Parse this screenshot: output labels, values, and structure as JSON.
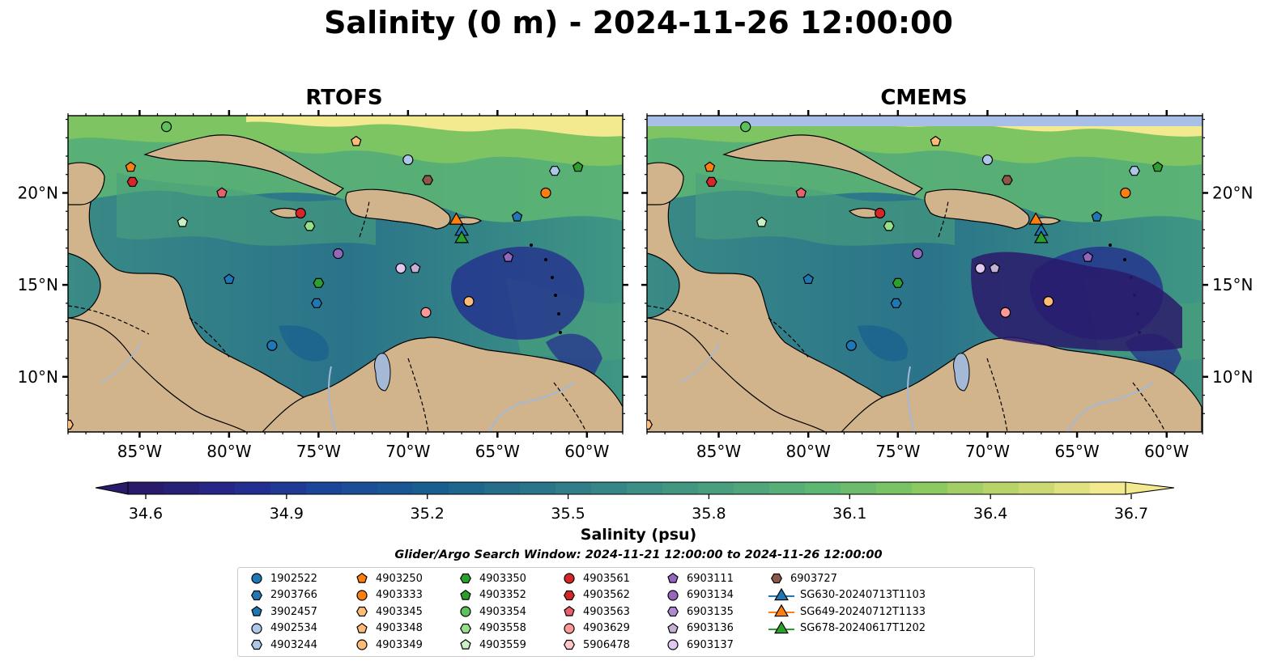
{
  "title": "Salinity (0 m) - 2024-11-26 12:00:00",
  "panels": [
    {
      "title": "RTOFS"
    },
    {
      "title": "CMEMS"
    }
  ],
  "axes": {
    "lat_labels": [
      "20°N",
      "15°N",
      "10°N"
    ],
    "lon_labels": [
      "85°W",
      "80°W",
      "75°W",
      "70°W",
      "65°W",
      "60°W"
    ],
    "extent": {
      "lon_min": -89,
      "lon_max": -58,
      "lat_min": 7,
      "lat_max": 24.2
    }
  },
  "colorbar": {
    "title": "Salinity (psu)",
    "ticks": [
      "34.6",
      "34.9",
      "35.2",
      "35.5",
      "35.8",
      "36.1",
      "36.4",
      "36.7"
    ],
    "min": 34.6,
    "max": 36.7,
    "colormap": "haline",
    "stops": [
      "#2a1a6b",
      "#232a8f",
      "#1a4a9a",
      "#185f8f",
      "#2a738a",
      "#3a8a86",
      "#4aa07c",
      "#5db574",
      "#82c760",
      "#bfd46a",
      "#f3e98e"
    ]
  },
  "search_window": "Glider/Argo Search Window: 2024-11-21 12:00:00 to 2024-11-26 12:00:00",
  "colors": {
    "land": "#d2b48c",
    "missing": "#a8c0e8",
    "river": "#a3b9d6"
  },
  "legend": [
    {
      "label": "1902522",
      "marker": "circle",
      "color": "#1f77b4"
    },
    {
      "label": "2903766",
      "marker": "hexagon",
      "color": "#1f77b4"
    },
    {
      "label": "3902457",
      "marker": "pentagon",
      "color": "#1f77b4"
    },
    {
      "label": "4902534",
      "marker": "circle",
      "color": "#aec7e8"
    },
    {
      "label": "4903244",
      "marker": "hexagon",
      "color": "#aec7e8"
    },
    {
      "label": "4903250",
      "marker": "pentagon",
      "color": "#ff7f0e"
    },
    {
      "label": "4903333",
      "marker": "circle",
      "color": "#ff7f0e"
    },
    {
      "label": "4903345",
      "marker": "hexagon",
      "color": "#ffbb78"
    },
    {
      "label": "4903348",
      "marker": "pentagon",
      "color": "#ffbb78"
    },
    {
      "label": "4903349",
      "marker": "circle",
      "color": "#ffbb78"
    },
    {
      "label": "4903350",
      "marker": "hexagon",
      "color": "#2ca02c"
    },
    {
      "label": "4903352",
      "marker": "pentagon",
      "color": "#2ca02c"
    },
    {
      "label": "4903354",
      "marker": "circle",
      "color": "#5cc05c"
    },
    {
      "label": "4903558",
      "marker": "hexagon",
      "color": "#98df8a"
    },
    {
      "label": "4903559",
      "marker": "pentagon",
      "color": "#c8f0c0"
    },
    {
      "label": "4903561",
      "marker": "circle",
      "color": "#d62728"
    },
    {
      "label": "4903562",
      "marker": "hexagon",
      "color": "#d62728"
    },
    {
      "label": "4903563",
      "marker": "pentagon",
      "color": "#e8606a"
    },
    {
      "label": "4903629",
      "marker": "circle",
      "color": "#ff9896"
    },
    {
      "label": "5906478",
      "marker": "hexagon",
      "color": "#ffc8c8"
    },
    {
      "label": "6903111",
      "marker": "pentagon",
      "color": "#9467bd"
    },
    {
      "label": "6903134",
      "marker": "circle",
      "color": "#9467bd"
    },
    {
      "label": "6903135",
      "marker": "hexagon",
      "color": "#b08ad0"
    },
    {
      "label": "6903136",
      "marker": "pentagon",
      "color": "#c5b0d5"
    },
    {
      "label": "6903137",
      "marker": "circle",
      "color": "#e0c8f0"
    },
    {
      "label": "6903727",
      "marker": "hexagon",
      "color": "#8c564b"
    },
    {
      "label": "SG630-20240713T1103",
      "marker": "triangle",
      "color": "#1f77b4"
    },
    {
      "label": "SG649-20240712T1133",
      "marker": "triangle",
      "color": "#ff7f0e"
    },
    {
      "label": "SG678-20240617T1202",
      "marker": "triangle",
      "color": "#2ca02c"
    }
  ],
  "observations": [
    {
      "id": "1902522",
      "lon": -77.6,
      "lat": 11.7
    },
    {
      "id": "2903766",
      "lon": -75.1,
      "lat": 14.0
    },
    {
      "id": "3902457",
      "lon": -80.0,
      "lat": 15.3
    },
    {
      "id": "4902534",
      "lon": -70.0,
      "lat": 21.8
    },
    {
      "id": "4903244",
      "lon": -61.8,
      "lat": 21.2
    },
    {
      "id": "4903250",
      "lon": -85.5,
      "lat": 21.4
    },
    {
      "id": "4903333",
      "lon": -62.3,
      "lat": 20.0
    },
    {
      "id": "4903345",
      "lon": -89.0,
      "lat": 7.4
    },
    {
      "id": "4903348",
      "lon": -72.9,
      "lat": 22.8
    },
    {
      "id": "4903349",
      "lon": -66.6,
      "lat": 14.1
    },
    {
      "id": "4903350",
      "lon": -75.0,
      "lat": 15.1
    },
    {
      "id": "4903352",
      "lon": -60.5,
      "lat": 21.4
    },
    {
      "id": "4903354",
      "lon": -83.5,
      "lat": 23.6
    },
    {
      "id": "4903558",
      "lon": -75.5,
      "lat": 18.2
    },
    {
      "id": "4903559",
      "lon": -82.6,
      "lat": 18.4
    },
    {
      "id": "4903561",
      "lon": -76.0,
      "lat": 18.9
    },
    {
      "id": "4903562",
      "lon": -85.4,
      "lat": 20.6
    },
    {
      "id": "4903563",
      "lon": -80.4,
      "lat": 20.0
    },
    {
      "id": "4903629",
      "lon": -69.0,
      "lat": 13.5
    },
    {
      "id": "6903111",
      "lon": -64.4,
      "lat": 16.5
    },
    {
      "id": "6903134",
      "lon": -73.9,
      "lat": 16.7
    },
    {
      "id": "6903136",
      "lon": -69.6,
      "lat": 15.9
    },
    {
      "id": "6903137",
      "lon": -70.4,
      "lat": 15.9
    },
    {
      "id": "6903727",
      "lon": -68.9,
      "lat": 20.7
    },
    {
      "id": "3902457b",
      "lon": -63.9,
      "lat": 18.7
    },
    {
      "id": "SG649-20240712T1133",
      "lon": -67.3,
      "lat": 18.5
    },
    {
      "id": "SG630-20240713T1103",
      "lon": -67.0,
      "lat": 17.9
    },
    {
      "id": "SG678-20240617T1202",
      "lon": -67.0,
      "lat": 17.5
    }
  ]
}
